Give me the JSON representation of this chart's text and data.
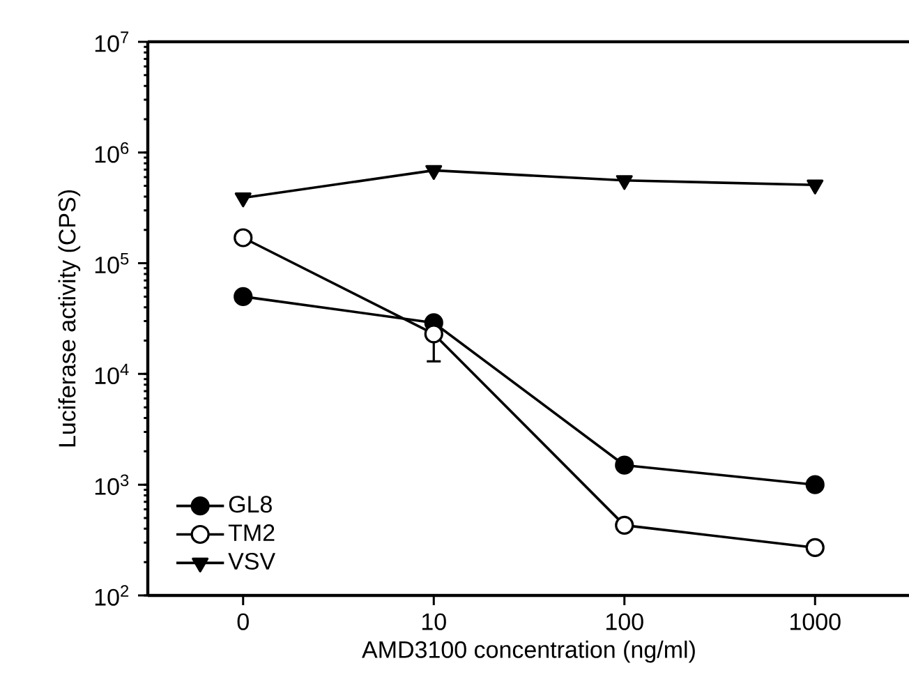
{
  "chart_data": {
    "type": "line",
    "xlabel": "AMD3100 concentration (ng/ml)",
    "ylabel": "Luciferase activity (CPS)",
    "categories": [
      "0",
      "10",
      "100",
      "1000"
    ],
    "log": "y",
    "ylim": [
      100,
      10000000
    ],
    "yticks": [
      {
        "value": 100,
        "label": "10$^{2}$"
      },
      {
        "value": 1000,
        "label": "10$^{3}$"
      },
      {
        "value": 10000,
        "label": "10$^{4}$"
      },
      {
        "value": 100000,
        "label": "10$^{5}$"
      },
      {
        "value": 1000000,
        "label": "10$^{6}$"
      },
      {
        "value": 10000000,
        "label": "10$^{7}$"
      }
    ],
    "grid": false,
    "legend": "bottom left",
    "line_style": "solid",
    "series": [
      {
        "name": "GL8",
        "color": "#000000",
        "marker": "circle",
        "values": [
          50000,
          29000,
          1500,
          1000
        ]
      },
      {
        "name": "TM2",
        "color": "#ffffff",
        "marker": "circle",
        "values": [
          170000,
          23000,
          430,
          270
        ],
        "errors": [
          null,
          [
            13000,
            26000
          ],
          null,
          null
        ]
      },
      {
        "name": "VSV",
        "color": "#000000",
        "marker": "triangle",
        "values": [
          390000,
          690000,
          560000,
          510000
        ]
      }
    ]
  }
}
